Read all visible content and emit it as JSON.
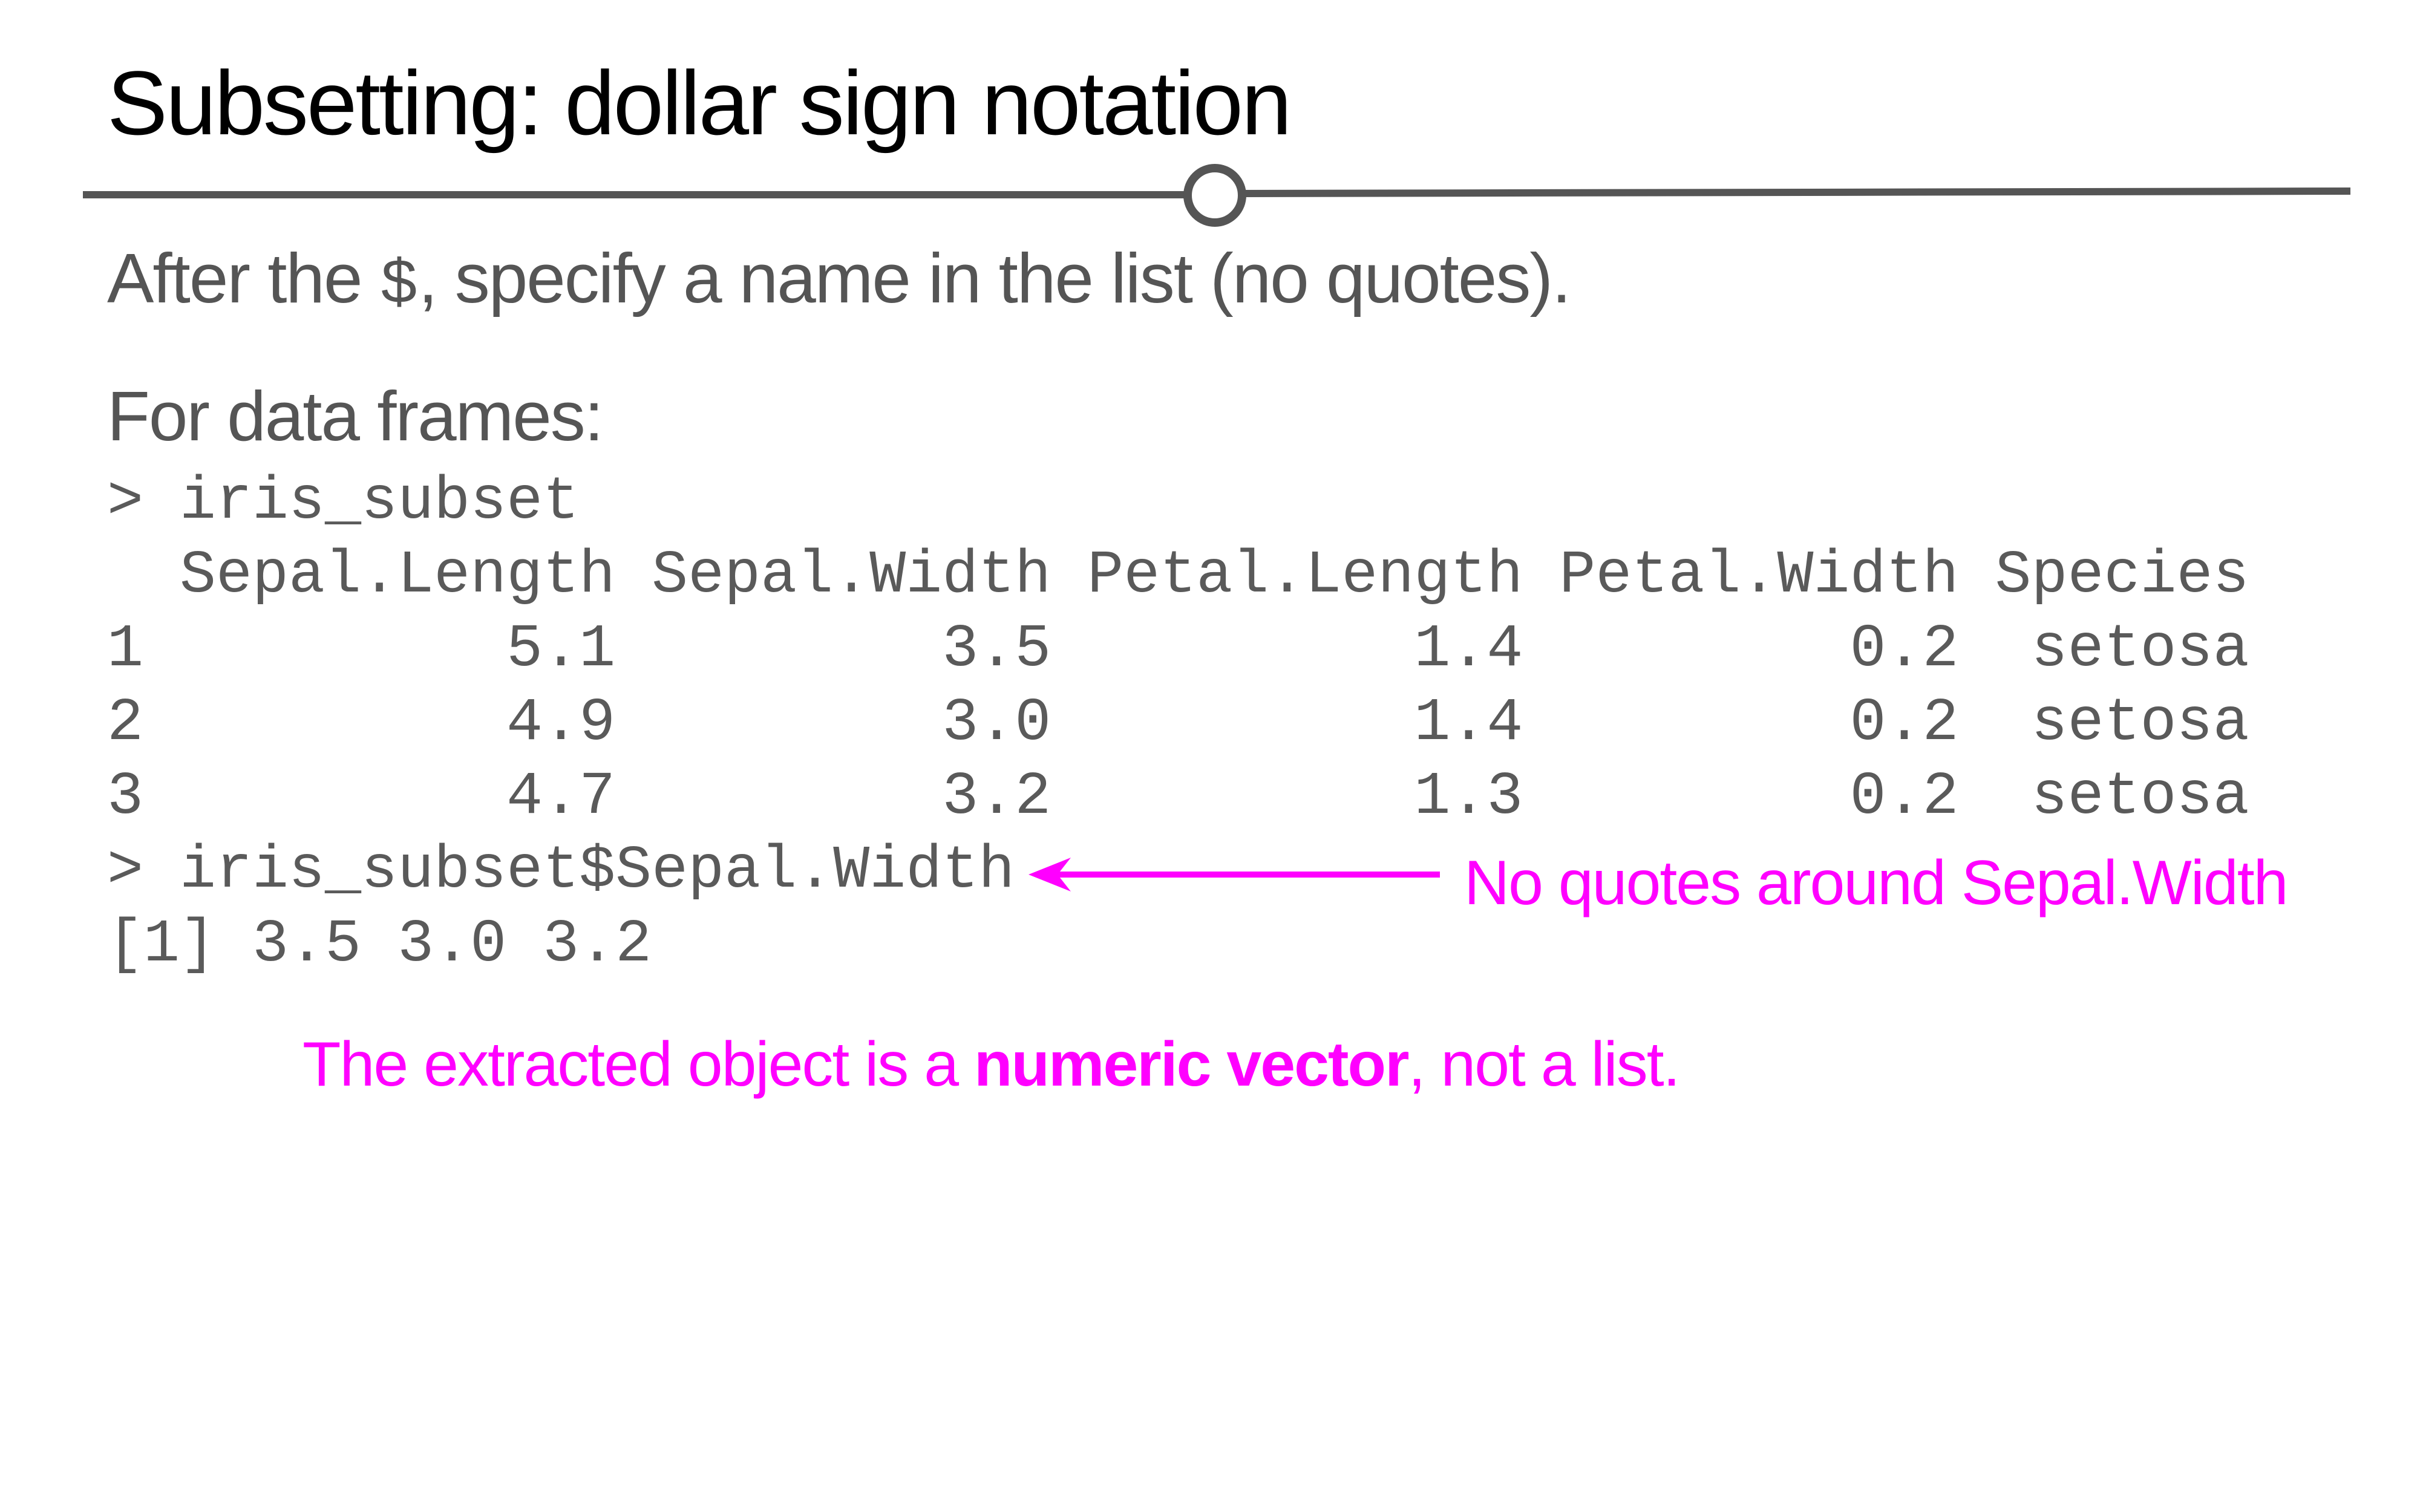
{
  "slide": {
    "title": "Subsetting: dollar sign notation"
  },
  "bullets": {
    "first": {
      "before": "After the ",
      "code": "$",
      "after": ", specify a name in the list (no quotes)."
    },
    "second": "For data frames:"
  },
  "console": {
    "lines": [
      "> iris_subset",
      "  Sepal.Length Sepal.Width Petal.Length Petal.Width Species",
      "1          5.1         3.5          1.4         0.2  setosa",
      "2          4.9         3.0          1.4         0.2  setosa",
      "3          4.7         3.2          1.3         0.2  setosa",
      "> iris_subset$Sepal.Width",
      "[1] 3.5 3.0 3.2"
    ]
  },
  "annotations": {
    "arrow_label": "No quotes around Sepal.Width",
    "note_before": "The extracted object is a ",
    "note_bold": "numeric vector",
    "note_after": ", not a list."
  },
  "colors": {
    "title_text": "#000000",
    "body_text": "#555555",
    "console_text": "#5a5a5a",
    "rule": "#555555",
    "accent": "#ff00ff",
    "background": "#ffffff"
  }
}
